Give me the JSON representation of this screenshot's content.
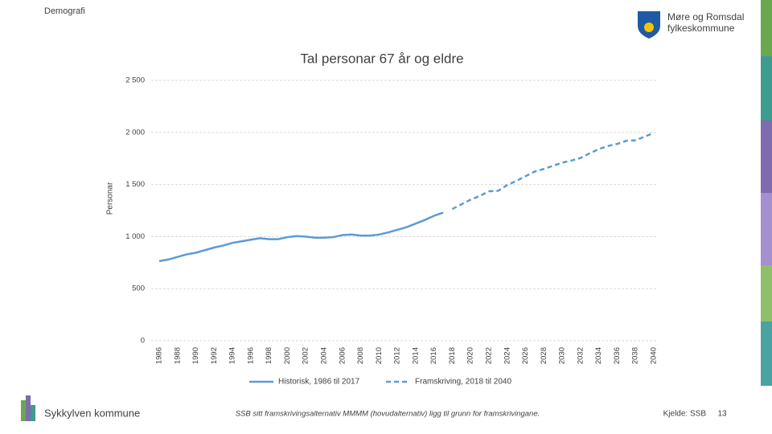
{
  "header": {
    "section": "Demografi",
    "logo_lines": [
      "Møre og Romsdal",
      "fylkeskommune"
    ]
  },
  "chart_data": {
    "type": "line",
    "title": "Tal personar 67 år og eldre",
    "y_label": "Personar",
    "x": [
      1986,
      1987,
      1988,
      1989,
      1990,
      1991,
      1992,
      1993,
      1994,
      1995,
      1996,
      1997,
      1998,
      1999,
      2000,
      2001,
      2002,
      2003,
      2004,
      2005,
      2006,
      2007,
      2008,
      2009,
      2010,
      2011,
      2012,
      2013,
      2014,
      2015,
      2016,
      2017,
      2018,
      2019,
      2020,
      2021,
      2022,
      2023,
      2024,
      2025,
      2026,
      2027,
      2028,
      2029,
      2030,
      2031,
      2032,
      2033,
      2034,
      2035,
      2036,
      2037,
      2038,
      2039,
      2040
    ],
    "series": [
      {
        "name": "Historisk, 1986 til 2017",
        "color": "#5b9bd5",
        "style": "solid",
        "values": [
          765,
          780,
          805,
          830,
          845,
          870,
          895,
          915,
          940,
          955,
          970,
          985,
          975,
          975,
          995,
          1005,
          1000,
          990,
          990,
          995,
          1015,
          1020,
          1010,
          1010,
          1020,
          1040,
          1065,
          1090,
          1125,
          1160,
          1200,
          1230,
          null,
          null,
          null,
          null,
          null,
          null,
          null,
          null,
          null,
          null,
          null,
          null,
          null,
          null,
          null,
          null,
          null,
          null,
          null,
          null,
          null,
          null,
          null
        ]
      },
      {
        "name": "Framskriving, 2018 til 2040",
        "color": "#5b9bd5",
        "style": "dashed",
        "values": [
          null,
          null,
          null,
          null,
          null,
          null,
          null,
          null,
          null,
          null,
          null,
          null,
          null,
          null,
          null,
          null,
          null,
          null,
          null,
          null,
          null,
          null,
          null,
          null,
          null,
          null,
          null,
          null,
          null,
          null,
          null,
          null,
          1265,
          1310,
          1355,
          1390,
          1435,
          1440,
          1495,
          1535,
          1580,
          1625,
          1650,
          1680,
          1710,
          1730,
          1755,
          1800,
          1840,
          1870,
          1890,
          1920,
          1925,
          1960,
          1995
        ]
      }
    ],
    "xlim": [
      1986,
      2040
    ],
    "xticks": [
      1986,
      1988,
      1990,
      1992,
      1994,
      1996,
      1998,
      2000,
      2002,
      2004,
      2006,
      2008,
      2010,
      2012,
      2014,
      2016,
      2018,
      2020,
      2022,
      2024,
      2026,
      2028,
      2030,
      2032,
      2034,
      2036,
      2038,
      2040
    ],
    "ylim": [
      0,
      2500
    ],
    "yticks": [
      0,
      {
        "value": 500,
        "label": "500"
      },
      {
        "value": 1000,
        "label": "1 000"
      },
      {
        "value": 1500,
        "label": "1 500"
      },
      {
        "value": 2000,
        "label": "2 000"
      },
      {
        "value": 2500,
        "label": "2 500"
      }
    ],
    "grid": true,
    "legend": "bottom"
  },
  "footer": {
    "municipality": "Sykkylven kommune",
    "note": "SSB sitt framskrivingsalternativ MMMM (hovudalternativ) ligg til grunn for framskrivingane.",
    "source": "Kjelde: SSB",
    "page": 13
  }
}
